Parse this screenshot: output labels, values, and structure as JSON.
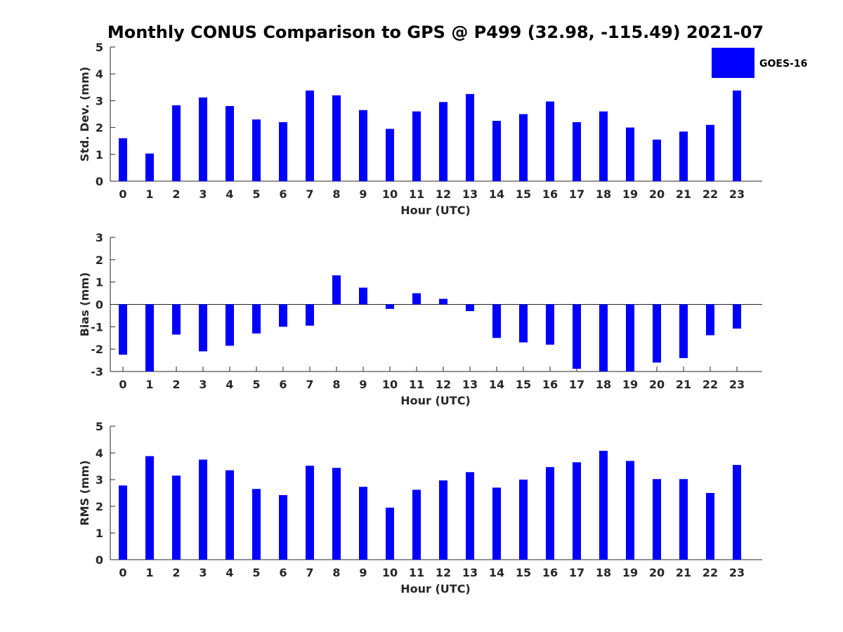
{
  "chart_data": {
    "type": "bar",
    "title": "Monthly CONUS Comparison to GPS @ P499 (32.98, -115.49) 2021-07",
    "legend": {
      "label": "GOES-16",
      "placement": "top-right"
    },
    "colors": {
      "bar": "#0000ff",
      "axis": "#262626",
      "background": "#ffffff"
    },
    "panels": [
      {
        "id": "std",
        "xlabel": "Hour (UTC)",
        "ylabel": "Std. Dev. (mm)",
        "ylim": [
          0,
          5
        ],
        "yticks": [
          "0",
          "1",
          "2",
          "3",
          "4",
          "5"
        ],
        "categories": [
          "0",
          "1",
          "2",
          "3",
          "4",
          "5",
          "6",
          "7",
          "8",
          "9",
          "10",
          "11",
          "12",
          "13",
          "14",
          "15",
          "16",
          "17",
          "18",
          "19",
          "20",
          "21",
          "22",
          "23"
        ],
        "series": [
          {
            "name": "GOES-16",
            "values": [
              1.6,
              1.03,
              2.83,
              3.12,
              2.8,
              2.3,
              2.2,
              3.38,
              3.2,
              2.65,
              1.95,
              2.6,
              2.95,
              3.25,
              2.25,
              2.5,
              2.97,
              2.2,
              2.6,
              2.0,
              1.55,
              1.85,
              2.1,
              3.38
            ]
          }
        ]
      },
      {
        "id": "bias",
        "xlabel": "Hour (UTC)",
        "ylabel": "Bias (mm)",
        "ylim": [
          -3,
          3
        ],
        "yticks": [
          "-3",
          "-2",
          "-1",
          "0",
          "1",
          "2",
          "3"
        ],
        "categories": [
          "0",
          "1",
          "2",
          "3",
          "4",
          "5",
          "6",
          "7",
          "8",
          "9",
          "10",
          "11",
          "12",
          "13",
          "14",
          "15",
          "16",
          "17",
          "18",
          "19",
          "20",
          "21",
          "22",
          "23"
        ],
        "series": [
          {
            "name": "GOES-16",
            "values": [
              -2.25,
              -3.0,
              -1.35,
              -2.1,
              -1.85,
              -1.3,
              -1.0,
              -0.95,
              1.3,
              0.75,
              -0.2,
              0.5,
              0.25,
              -0.3,
              -1.5,
              -1.7,
              -1.8,
              -2.88,
              -3.0,
              -3.0,
              -2.6,
              -2.4,
              -1.38,
              -1.08
            ]
          }
        ]
      },
      {
        "id": "rms",
        "xlabel": "Hour (UTC)",
        "ylabel": "RMS (mm)",
        "ylim": [
          0,
          5
        ],
        "yticks": [
          "0",
          "1",
          "2",
          "3",
          "4",
          "5"
        ],
        "categories": [
          "0",
          "1",
          "2",
          "3",
          "4",
          "5",
          "6",
          "7",
          "8",
          "9",
          "10",
          "11",
          "12",
          "13",
          "14",
          "15",
          "16",
          "17",
          "18",
          "19",
          "20",
          "21",
          "22",
          "23"
        ],
        "series": [
          {
            "name": "GOES-16",
            "values": [
              2.78,
              3.88,
              3.15,
              3.75,
              3.35,
              2.65,
              2.42,
              3.52,
              3.44,
              2.73,
              1.95,
              2.62,
              2.97,
              3.28,
              2.7,
              3.0,
              3.47,
              3.65,
              4.08,
              3.7,
              3.02,
              3.02,
              2.5,
              3.55
            ]
          }
        ]
      }
    ]
  }
}
